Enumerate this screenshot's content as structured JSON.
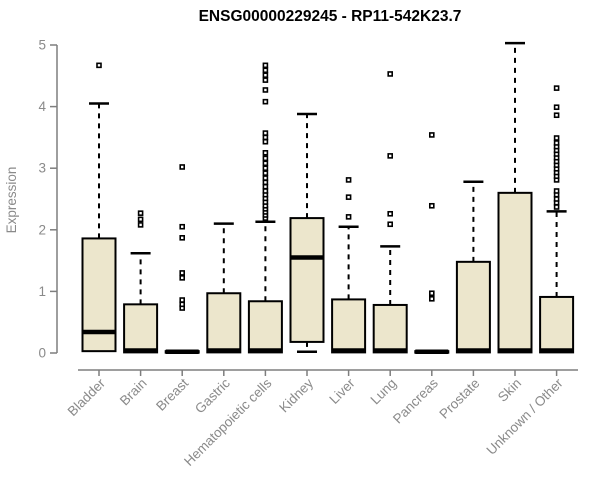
{
  "chart_data": {
    "type": "boxplot",
    "title": "ENSG00000229245 - RP11-542K23.7",
    "ylabel": "Expression",
    "xlabel": "",
    "ylim": [
      0,
      5
    ],
    "yticks": [
      0,
      1,
      2,
      3,
      4,
      5
    ],
    "grid": false,
    "legend": "none",
    "colors": {
      "box_fill": "#ECE6CC",
      "box_border": "#000000",
      "median": "#000000",
      "whisker": "#000000",
      "outlier_stroke": "#000000",
      "outlier_fill": "#ffffff",
      "axis": "#7E7E7E",
      "tick_text": "#8A8A8A",
      "title_text": "#000000",
      "background": "#ffffff"
    },
    "categories": [
      "Bladder",
      "Brain",
      "Breast",
      "Gastric",
      "Hematopoietic cells",
      "Kidney",
      "Liver",
      "Lung",
      "Pancreas",
      "Prostate",
      "Skin",
      "Unknown / Other"
    ],
    "series": [
      {
        "category": "Bladder",
        "slug": "bladder",
        "whislo": 0.03,
        "q1": 0.03,
        "med": 0.34,
        "q3": 1.86,
        "whishi": 4.05,
        "outliers": [
          4.67
        ]
      },
      {
        "category": "Brain",
        "slug": "brain",
        "whislo": 0.01,
        "q1": 0.01,
        "med": 0.04,
        "q3": 0.79,
        "whishi": 1.62,
        "outliers": [
          2.08,
          2.17,
          2.27
        ]
      },
      {
        "category": "Breast",
        "slug": "breast",
        "whislo": 0.01,
        "q1": 0.01,
        "med": 0.02,
        "q3": 0.03,
        "whishi": 0.03,
        "outliers": [
          0.73,
          0.79,
          0.86,
          1.22,
          1.3,
          1.87,
          2.05,
          3.02
        ]
      },
      {
        "category": "Gastric",
        "slug": "gastric",
        "whislo": 0.01,
        "q1": 0.01,
        "med": 0.04,
        "q3": 0.97,
        "whishi": 2.1,
        "outliers": []
      },
      {
        "category": "Hematopoietic cells",
        "slug": "hematopoietic-cells",
        "whislo": 0.01,
        "q1": 0.01,
        "med": 0.04,
        "q3": 0.84,
        "whishi": 2.13,
        "outliers": [
          2.19,
          2.24,
          2.29,
          2.34,
          2.39,
          2.45,
          2.51,
          2.57,
          2.63,
          2.7,
          2.77,
          2.84,
          2.92,
          3.0,
          3.08,
          3.16,
          3.25,
          3.43,
          3.5,
          3.57,
          4.08,
          4.27,
          4.43,
          4.51,
          4.59,
          4.67
        ]
      },
      {
        "category": "Kidney",
        "slug": "kidney",
        "whislo": 0.02,
        "q1": 0.18,
        "med": 1.55,
        "q3": 2.19,
        "whishi": 3.88,
        "outliers": []
      },
      {
        "category": "Liver",
        "slug": "liver",
        "whislo": 0.01,
        "q1": 0.01,
        "med": 0.04,
        "q3": 0.87,
        "whishi": 2.05,
        "outliers": [
          2.21,
          2.53,
          2.81
        ]
      },
      {
        "category": "Lung",
        "slug": "lung",
        "whislo": 0.01,
        "q1": 0.01,
        "med": 0.04,
        "q3": 0.78,
        "whishi": 1.73,
        "outliers": [
          2.09,
          2.26,
          3.2,
          4.53
        ]
      },
      {
        "category": "Pancreas",
        "slug": "pancreas",
        "whislo": 0.01,
        "q1": 0.01,
        "med": 0.02,
        "q3": 0.03,
        "whishi": 0.03,
        "outliers": [
          0.88,
          0.97,
          2.39,
          3.54
        ]
      },
      {
        "category": "Prostate",
        "slug": "prostate",
        "whislo": 0.01,
        "q1": 0.01,
        "med": 0.04,
        "q3": 1.48,
        "whishi": 2.78,
        "outliers": []
      },
      {
        "category": "Skin",
        "slug": "skin",
        "whislo": 0.01,
        "q1": 0.01,
        "med": 0.04,
        "q3": 2.6,
        "whishi": 5.03,
        "outliers": []
      },
      {
        "category": "Unknown / Other",
        "slug": "unknown-other",
        "whislo": 0.01,
        "q1": 0.01,
        "med": 0.04,
        "q3": 0.91,
        "whishi": 2.3,
        "outliers": [
          2.37,
          2.44,
          2.5,
          2.57,
          2.63,
          2.81,
          2.87,
          2.93,
          2.99,
          3.05,
          3.11,
          3.17,
          3.23,
          3.29,
          3.35,
          3.41,
          3.49,
          3.86,
          3.99,
          4.3
        ]
      }
    ]
  }
}
